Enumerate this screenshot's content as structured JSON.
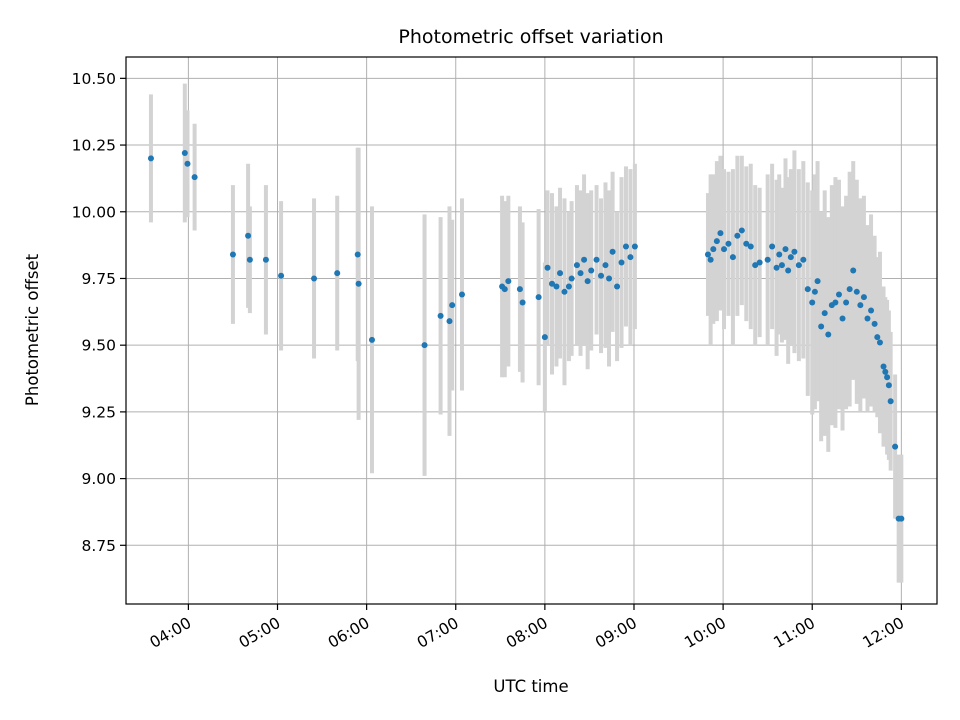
{
  "colors": {
    "point": "#1f77b4",
    "errorbar": "#d3d3d3",
    "grid": "#b0b0b0",
    "axes": "#000000"
  },
  "chart_data": {
    "type": "scatter",
    "title": "Photometric offset variation",
    "xlabel": "UTC time",
    "ylabel": "Photometric offset",
    "x_unit": "hour (UTC, decimal)",
    "xlim": [
      3.3,
      12.4
    ],
    "ylim": [
      8.53,
      10.58
    ],
    "grid": true,
    "legend": "none",
    "x_ticks": [
      4,
      5,
      6,
      7,
      8,
      9,
      10,
      11,
      12
    ],
    "x_tick_labels": [
      "04:00",
      "05:00",
      "06:00",
      "07:00",
      "08:00",
      "09:00",
      "10:00",
      "11:00",
      "12:00"
    ],
    "y_ticks": [
      8.75,
      9.0,
      9.25,
      9.5,
      9.75,
      10.0,
      10.25,
      10.5
    ],
    "y_tick_labels": [
      "8.75",
      "9.00",
      "9.25",
      "9.50",
      "9.75",
      "10.00",
      "10.25",
      "10.50"
    ],
    "series": [
      {
        "x": [
          3.58,
          3.96,
          3.99,
          4.07,
          4.5,
          4.67,
          4.69,
          4.87,
          5.04,
          5.41,
          5.67,
          5.9,
          5.91,
          6.06,
          6.65,
          6.83,
          6.93,
          6.96,
          7.07,
          7.52,
          7.55,
          7.59,
          7.72,
          7.75,
          7.93,
          8.0,
          8.03,
          8.08,
          8.13,
          8.17,
          8.22,
          8.27,
          8.3,
          8.36,
          8.4,
          8.44,
          8.48,
          8.52,
          8.58,
          8.63,
          8.68,
          8.72,
          8.76,
          8.81,
          8.86,
          8.91,
          8.96,
          9.01,
          9.83,
          9.86,
          9.89,
          9.93,
          9.97,
          10.01,
          10.06,
          10.11,
          10.16,
          10.21,
          10.26,
          10.31,
          10.36,
          10.41,
          10.5,
          10.55,
          10.6,
          10.63,
          10.66,
          10.7,
          10.73,
          10.76,
          10.8,
          10.85,
          10.9,
          10.95,
          11.0,
          11.03,
          11.06,
          11.1,
          11.14,
          11.18,
          11.22,
          11.26,
          11.3,
          11.34,
          11.38,
          11.42,
          11.46,
          11.5,
          11.54,
          11.58,
          11.62,
          11.66,
          11.7,
          11.73,
          11.76,
          11.8,
          11.82,
          11.84,
          11.86,
          11.88,
          11.93,
          11.97,
          12.0
        ],
        "y": [
          10.2,
          10.22,
          10.18,
          10.13,
          9.84,
          9.91,
          9.82,
          9.82,
          9.76,
          9.75,
          9.77,
          9.84,
          9.73,
          9.52,
          9.5,
          9.61,
          9.59,
          9.65,
          9.69,
          9.72,
          9.71,
          9.74,
          9.71,
          9.66,
          9.68,
          9.53,
          9.79,
          9.73,
          9.72,
          9.77,
          9.7,
          9.72,
          9.75,
          9.8,
          9.77,
          9.82,
          9.74,
          9.78,
          9.82,
          9.76,
          9.8,
          9.75,
          9.85,
          9.72,
          9.81,
          9.87,
          9.83,
          9.87,
          9.84,
          9.82,
          9.86,
          9.89,
          9.92,
          9.86,
          9.88,
          9.83,
          9.91,
          9.93,
          9.88,
          9.87,
          9.8,
          9.81,
          9.82,
          9.87,
          9.79,
          9.84,
          9.8,
          9.86,
          9.78,
          9.83,
          9.85,
          9.8,
          9.82,
          9.71,
          9.66,
          9.7,
          9.74,
          9.57,
          9.62,
          9.54,
          9.65,
          9.66,
          9.69,
          9.6,
          9.66,
          9.71,
          9.78,
          9.7,
          9.65,
          9.68,
          9.6,
          9.63,
          9.58,
          9.53,
          9.51,
          9.42,
          9.4,
          9.38,
          9.35,
          9.29,
          9.12,
          8.85,
          8.85
        ],
        "yerr": [
          0.24,
          0.26,
          0.2,
          0.2,
          0.26,
          0.27,
          0.2,
          0.28,
          0.28,
          0.3,
          0.29,
          0.4,
          0.51,
          0.5,
          0.49,
          0.37,
          0.43,
          0.32,
          0.36,
          0.34,
          0.33,
          0.32,
          0.31,
          0.3,
          0.33,
          0.28,
          0.29,
          0.34,
          0.3,
          0.32,
          0.35,
          0.28,
          0.29,
          0.3,
          0.31,
          0.32,
          0.33,
          0.3,
          0.28,
          0.29,
          0.31,
          0.33,
          0.3,
          0.28,
          0.32,
          0.3,
          0.33,
          0.31,
          0.23,
          0.32,
          0.28,
          0.3,
          0.29,
          0.3,
          0.27,
          0.33,
          0.3,
          0.28,
          0.29,
          0.31,
          0.3,
          0.28,
          0.32,
          0.31,
          0.33,
          0.3,
          0.29,
          0.34,
          0.35,
          0.33,
          0.38,
          0.36,
          0.37,
          0.4,
          0.42,
          0.44,
          0.45,
          0.43,
          0.46,
          0.44,
          0.45,
          0.47,
          0.43,
          0.42,
          0.4,
          0.44,
          0.41,
          0.42,
          0.4,
          0.38,
          0.35,
          0.36,
          0.33,
          0.3,
          0.34,
          0.3,
          0.28,
          0.29,
          0.28,
          0.26,
          0.27,
          0.24,
          0.24
        ]
      }
    ]
  }
}
